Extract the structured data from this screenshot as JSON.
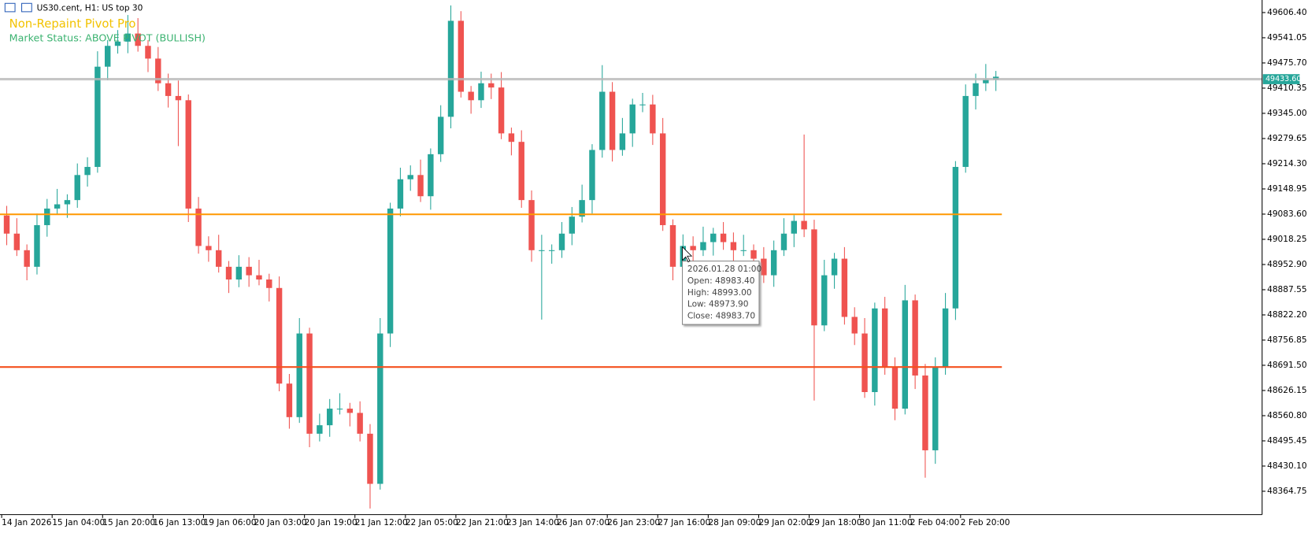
{
  "header": {
    "symbol": "US30.cent, H1:  US top 30",
    "indicator": "Non-Repaint Pivot Pro",
    "status": "Market Status: ABOVE PIVOT (BULLISH)"
  },
  "tooltip": {
    "time": "2026.01.28 01:00",
    "open": "Open: 48983.40",
    "high": "High: 48993.00",
    "low": "Low: 48973.90",
    "close": "Close: 48983.70"
  },
  "chart_data": {
    "type": "candlestick",
    "up_color": "#26a69a",
    "down_color": "#ef5350",
    "ylim": [
      48304.18,
      49638.85
    ],
    "yticks": [
      {
        "value": 49606.4,
        "label": "49606.40"
      },
      49541.05,
      {
        "value": 49475.7,
        "label": "49475.70"
      },
      49410.35,
      {
        "value": 49345,
        "label": "49345.00"
      },
      49279.65,
      {
        "value": 49214.3,
        "label": "49214.30"
      },
      49148.95,
      {
        "value": 49083.6,
        "label": "49083.60"
      },
      49018.25,
      {
        "value": 48952.9,
        "label": "48952.90"
      },
      48887.55,
      {
        "value": 48822.2,
        "label": "48822.20"
      },
      48756.85,
      {
        "value": 48691.5,
        "label": "48691.50"
      },
      48626.15,
      {
        "value": 48560.8,
        "label": "48560.80"
      },
      48495.45,
      {
        "value": 48430.1,
        "label": "48430.10"
      },
      48364.75
    ],
    "levels": [
      {
        "value": 49433.6,
        "label": "49433.60",
        "color": "#b8b8b8"
      },
      {
        "value": 49083,
        "color": "#ff9800"
      },
      {
        "value": 48687,
        "color": "#f4511e"
      }
    ],
    "categories": [
      "14 Jan 2026",
      null,
      null,
      null,
      null,
      "15 Jan 04:00",
      null,
      null,
      null,
      null,
      "15 Jan 20:00",
      null,
      null,
      null,
      null,
      "16 Jan 13:00",
      null,
      null,
      null,
      null,
      "19 Jan 06:00",
      null,
      null,
      null,
      null,
      "20 Jan 03:00",
      null,
      null,
      null,
      null,
      "20 Jan 19:00",
      null,
      null,
      null,
      null,
      "21 Jan 12:00",
      null,
      null,
      null,
      null,
      "22 Jan 05:00",
      null,
      null,
      null,
      null,
      "22 Jan 21:00",
      null,
      null,
      null,
      null,
      "23 Jan 14:00",
      null,
      null,
      null,
      null,
      "26 Jan 07:00",
      null,
      null,
      null,
      null,
      "26 Jan 23:00",
      null,
      null,
      null,
      null,
      "27 Jan 16:00",
      null,
      null,
      null,
      null,
      "28 Jan 09:00",
      null,
      null,
      null,
      null,
      "29 Jan 02:00",
      null,
      null,
      null,
      null,
      "29 Jan 18:00",
      null,
      null,
      null,
      null,
      "30 Jan 11:00",
      null,
      null,
      null,
      null,
      "2 Feb 04:00",
      null,
      null,
      null,
      null,
      "2 Feb 20:00",
      null,
      null,
      null
    ],
    "open": [
      49080,
      49033,
      48990,
      48947,
      49055,
      49098,
      49109,
      49120,
      49185,
      49206,
      49466,
      49520,
      49531,
      49552,
      49520,
      49487,
      49423,
      49390,
      49379,
      49098,
      49001,
      48990,
      48947,
      48914,
      48947,
      48925,
      48914,
      48892,
      48644,
      48557,
      48774,
      48514,
      48536,
      48579,
      48579,
      48568,
      48514,
      48384,
      48774,
      49098,
      49174,
      49185,
      49130,
      49239,
      49336,
      49585,
      49401,
      49379,
      49423,
      49412,
      49293,
      49271,
      49120,
      48990,
      48990,
      48990,
      49033,
      49077,
      49120,
      49250,
      49401,
      49250,
      49293,
      49368,
      49368,
      49293,
      49055,
      48947,
      49001,
      48990,
      49011,
      49033,
      49011,
      48990,
      48990,
      48968,
      48925,
      48990,
      49033,
      49066,
      49044,
      48795,
      48925,
      48968,
      48817,
      48774,
      48622,
      48839,
      48687,
      48579,
      48860,
      48665,
      48471,
      48687,
      48839,
      49206,
      49390,
      49423,
      49433
    ],
    "high": [
      49105,
      49073,
      49005,
      49085,
      49123,
      49149,
      49135,
      49215,
      49231,
      49506,
      49535,
      49561,
      49600,
      49592,
      49535,
      49517,
      49448,
      49430,
      49394,
      49128,
      49026,
      49030,
      48962,
      48977,
      48972,
      48965,
      48929,
      48922,
      48669,
      48814,
      48789,
      48566,
      48604,
      48619,
      48594,
      48598,
      48539,
      48814,
      49113,
      49204,
      49210,
      49225,
      49254,
      49366,
      49625,
      49610,
      49416,
      49453,
      49448,
      49452,
      49308,
      49301,
      49145,
      49030,
      49005,
      49063,
      49102,
      49160,
      49265,
      49470,
      49426,
      49333,
      49383,
      49398,
      49393,
      49333,
      49070,
      49031,
      49026,
      49051,
      49048,
      49063,
      49036,
      49030,
      49005,
      48998,
      49015,
      49073,
      49081,
      49290,
      49069,
      48965,
      48983,
      48998,
      48842,
      48814,
      48854,
      48869,
      48712,
      48900,
      48875,
      48695,
      48712,
      48879,
      49221,
      49420,
      49448,
      49473,
      49455
    ],
    "low": [
      49003,
      48975,
      48912,
      48927,
      49025,
      49083,
      49074,
      49100,
      49155,
      49191,
      49431,
      49500,
      49501,
      49505,
      49452,
      49403,
      49360,
      49260,
      49063,
      48981,
      48960,
      48932,
      48879,
      48894,
      48895,
      48899,
      48857,
      48624,
      48527,
      48542,
      48479,
      48494,
      48506,
      48564,
      48533,
      48494,
      48320,
      48369,
      48739,
      49078,
      49144,
      49115,
      49095,
      49219,
      49306,
      49386,
      49344,
      49359,
      49382,
      49278,
      49236,
      49100,
      48960,
      48810,
      48955,
      48970,
      49003,
      49062,
      49085,
      49230,
      49220,
      49235,
      49258,
      49348,
      49263,
      49040,
      48912,
      48927,
      48960,
      48975,
      48976,
      48991,
      48960,
      48975,
      48933,
      48905,
      48895,
      48975,
      48998,
      49024,
      48600,
      48780,
      48890,
      48797,
      48744,
      48607,
      48587,
      48667,
      48549,
      48564,
      48630,
      48400,
      48436,
      48667,
      48809,
      49191,
      49355,
      49403,
      49403
    ],
    "close": [
      49033,
      48990,
      48947,
      49055,
      49098,
      49109,
      49120,
      49185,
      49206,
      49466,
      49520,
      49531,
      49552,
      49520,
      49487,
      49423,
      49390,
      49379,
      49098,
      49001,
      48990,
      48947,
      48914,
      48947,
      48925,
      48914,
      48892,
      48644,
      48557,
      48774,
      48514,
      48536,
      48579,
      48579,
      48568,
      48514,
      48384,
      48774,
      49098,
      49174,
      49185,
      49130,
      49239,
      49336,
      49585,
      49401,
      49379,
      49423,
      49412,
      49293,
      49271,
      49120,
      48990,
      48990,
      48990,
      49033,
      49077,
      49120,
      49250,
      49401,
      49250,
      49293,
      49368,
      49368,
      49293,
      49055,
      48947,
      49001,
      48990,
      49011,
      49033,
      49011,
      48990,
      48990,
      48968,
      48925,
      48990,
      49033,
      49066,
      49044,
      48795,
      48925,
      48968,
      48817,
      48774,
      48622,
      48839,
      48687,
      48579,
      48860,
      48665,
      48471,
      48687,
      48839,
      49206,
      49390,
      49423,
      49433,
      49440
    ]
  }
}
